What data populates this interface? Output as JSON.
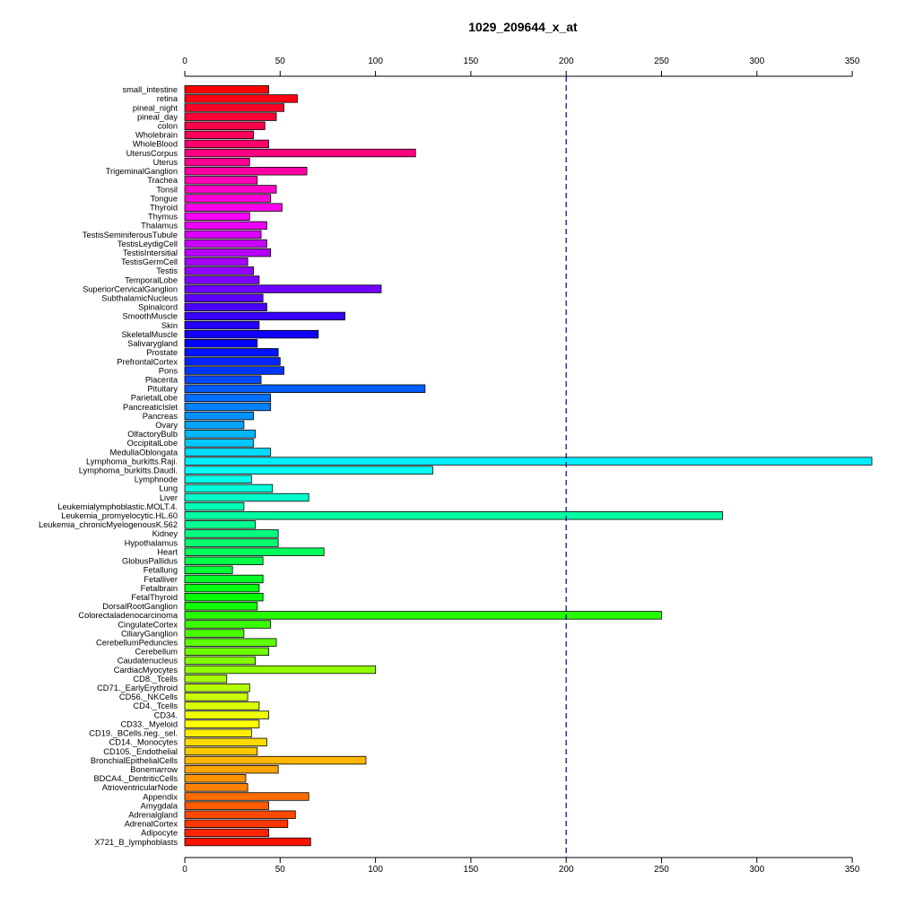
{
  "chart_data": {
    "type": "bar",
    "orientation": "horizontal",
    "title": "1029_209644_x_at",
    "xlabel": "",
    "ylabel": "",
    "xlim": [
      0,
      360
    ],
    "xticks": [
      0,
      50,
      100,
      150,
      200,
      250,
      300,
      350
    ],
    "reference_line": {
      "value": 200,
      "style": "dashed",
      "color": "#000080"
    },
    "bar_outline": "#000000",
    "color_scheme": "rainbow",
    "categories": [
      "small_intestine",
      "retina",
      "pineal_night",
      "pineal_day",
      "colon",
      "Wholebrain",
      "WholeBlood",
      "UterusCorpus",
      "Uterus",
      "TrigeminalGanglion",
      "Trachea",
      "Tonsil",
      "Tongue",
      "Thyroid",
      "Thymus",
      "Thalamus",
      "TestisSeminiferousTubule",
      "TestisLeydigCell",
      "TestisIntersitial",
      "TestisGermCell",
      "Testis",
      "TemporalLobe",
      "SuperiorCervicalGanglion",
      "SubthalamicNucleus",
      "Spinalcord",
      "SmoothMuscle",
      "Skin",
      "SkeletalMuscle",
      "Salivarygland",
      "Prostate",
      "PrefrontalCortex",
      "Pons",
      "Placenta",
      "Pituitary",
      "ParietalLobe",
      "PancreaticIslet",
      "Pancreas",
      "Ovary",
      "OlfactoryBulb",
      "OccipitalLobe",
      "MedullaOblongata",
      "Lymphoma_burkitts.Raji.",
      "Lymphoma_burkitts.Daudi.",
      "Lymphnode",
      "Lung",
      "Liver",
      "Leukemialymphoblastic.MOLT.4.",
      "Leukemia_promyelocytic.HL.60",
      "Leukemia_chronicMyelogenousK.562",
      "Kidney",
      "Hypothalamus",
      "Heart",
      "GlobusPallidus",
      "Fetallung",
      "Fetalliver",
      "Fetalbrain",
      "FetalThyroid",
      "DorsalRootGanglion",
      "Colorectaladenocarcinoma",
      "CingulateCortex",
      "CiliaryGanglion",
      "CerebellumPeduncles",
      "Cerebellum",
      "Caudatenucleus",
      "CardiacMyocytes",
      "CD8._Tcells",
      "CD71._EarlyErythroid",
      "CD56._NKCells",
      "CD4._Tcells",
      "CD34.",
      "CD33._Myeloid",
      "CD19._BCells.neg._sel.",
      "CD14._Monocytes",
      "CD105._Endothelial",
      "BronchialEpithelialCells",
      "Bonemarrow",
      "BDCA4._DentriticCells",
      "AtrioventricularNode",
      "Appendix",
      "Amygdala",
      "Adrenalgland",
      "AdrenalCortex",
      "Adipocyte",
      "X721_B_lymphoblasts"
    ],
    "values": [
      44,
      59,
      52,
      48,
      42,
      36,
      44,
      121,
      34,
      64,
      38,
      48,
      45,
      51,
      34,
      43,
      40,
      43,
      45,
      33,
      36,
      39,
      103,
      41,
      43,
      84,
      39,
      70,
      38,
      49,
      50,
      52,
      40,
      126,
      45,
      45,
      36,
      31,
      37,
      36,
      45,
      361,
      130,
      35,
      46,
      65,
      31,
      282,
      37,
      49,
      49,
      73,
      41,
      25,
      41,
      39,
      41,
      38,
      250,
      45,
      31,
      48,
      44,
      37,
      100,
      22,
      34,
      33,
      39,
      44,
      39,
      35,
      43,
      38,
      95,
      49,
      32,
      33,
      65,
      44,
      58,
      54,
      44,
      66
    ]
  }
}
